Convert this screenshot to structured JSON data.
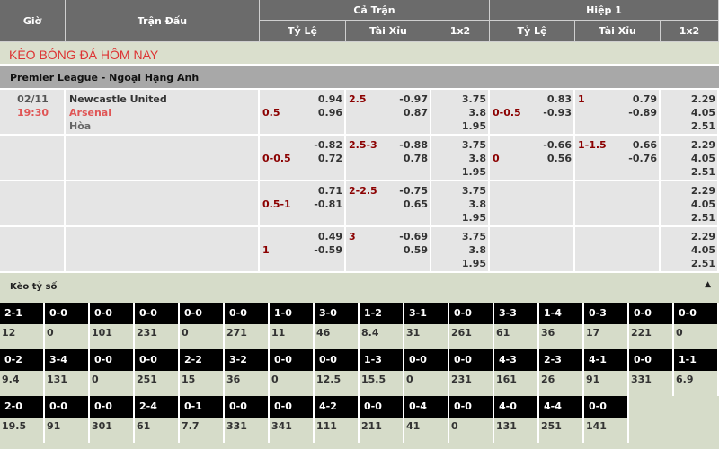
{
  "header": {
    "time": "Giờ",
    "match": "Trận Đấu",
    "full": "Cả Trận",
    "half": "Hiệp 1",
    "cols": [
      "Tỷ Lệ",
      "Tài Xỉu",
      "1x2",
      "Tỷ Lệ",
      "Tài Xỉu",
      "1x2"
    ]
  },
  "title": "KÈO BÓNG ĐÁ HÔM NAY",
  "league": "Premier League - Ngoại Hạng Anh",
  "match": {
    "date": "02/11",
    "time": "19:30",
    "home": "Newcastle United",
    "away": "Arsenal",
    "draw": "Hòa"
  },
  "rows": [
    {
      "hcp": "0.5",
      "hcp_odds": [
        "0.94",
        "0.96"
      ],
      "ou": "2.5",
      "ou_odds": [
        "-0.97",
        "0.87"
      ],
      "x12": [
        "3.75",
        "3.8",
        "1.95"
      ],
      "h1_hcp": "0-0.5",
      "h1_hcp_odds": [
        "0.83",
        "-0.93"
      ],
      "h1_ou": "1",
      "h1_ou_odds": [
        "0.79",
        "-0.89"
      ],
      "h1_x12": [
        "2.29",
        "4.05",
        "2.51"
      ]
    },
    {
      "hcp": "0-0.5",
      "hcp_odds": [
        "-0.82",
        "0.72"
      ],
      "ou": "2.5-3",
      "ou_odds": [
        "-0.88",
        "0.78"
      ],
      "x12": [
        "3.75",
        "3.8",
        "1.95"
      ],
      "h1_hcp": "0",
      "h1_hcp_odds": [
        "-0.66",
        "0.56"
      ],
      "h1_ou": "1-1.5",
      "h1_ou_odds": [
        "0.66",
        "-0.76"
      ],
      "h1_x12": [
        "2.29",
        "4.05",
        "2.51"
      ]
    },
    {
      "hcp": "0.5-1",
      "hcp_odds": [
        "0.71",
        "-0.81"
      ],
      "ou": "2-2.5",
      "ou_odds": [
        "-0.75",
        "0.65"
      ],
      "x12": [
        "3.75",
        "3.8",
        "1.95"
      ],
      "h1_x12": [
        "2.29",
        "4.05",
        "2.51"
      ]
    },
    {
      "hcp": "1",
      "hcp_odds": [
        "0.49",
        "-0.59"
      ],
      "ou": "3",
      "ou_odds": [
        "-0.69",
        "0.59"
      ],
      "x12": [
        "3.75",
        "3.8",
        "1.95"
      ],
      "h1_x12": [
        "2.29",
        "4.05",
        "2.51"
      ]
    }
  ],
  "correct_score": {
    "title": "Kèo tỷ số",
    "toggle_icon": "caret-up-icon",
    "rows": [
      {
        "scores": [
          "2-1",
          "0-0",
          "0-0",
          "0-0",
          "0-0",
          "0-0",
          "1-0",
          "3-0",
          "1-2",
          "3-1",
          "0-0",
          "3-3",
          "1-4",
          "0-3",
          "0-0",
          "0-0"
        ],
        "odds": [
          "12",
          "0",
          "101",
          "231",
          "0",
          "271",
          "11",
          "46",
          "8.4",
          "31",
          "261",
          "61",
          "36",
          "17",
          "221",
          "0"
        ]
      },
      {
        "scores": [
          "0-2",
          "3-4",
          "0-0",
          "0-0",
          "2-2",
          "3-2",
          "0-0",
          "0-0",
          "1-3",
          "0-0",
          "0-0",
          "4-3",
          "2-3",
          "4-1",
          "0-0",
          "1-1"
        ],
        "odds": [
          "9.4",
          "131",
          "0",
          "251",
          "15",
          "36",
          "0",
          "12.5",
          "15.5",
          "0",
          "231",
          "161",
          "26",
          "91",
          "331",
          "6.9"
        ]
      },
      {
        "scores": [
          "2-0",
          "0-0",
          "0-0",
          "2-4",
          "0-1",
          "0-0",
          "0-0",
          "4-2",
          "0-0",
          "0-4",
          "0-0",
          "4-0",
          "4-4",
          "0-0"
        ],
        "odds": [
          "19.5",
          "91",
          "301",
          "61",
          "7.7",
          "331",
          "341",
          "111",
          "211",
          "41",
          "0",
          "131",
          "251",
          "141"
        ]
      }
    ]
  },
  "colors": {
    "header": "#6b6b6b",
    "accent_red": "#8b0000",
    "title_red": "#dd3333",
    "score_bg": "#d6dcc9"
  }
}
